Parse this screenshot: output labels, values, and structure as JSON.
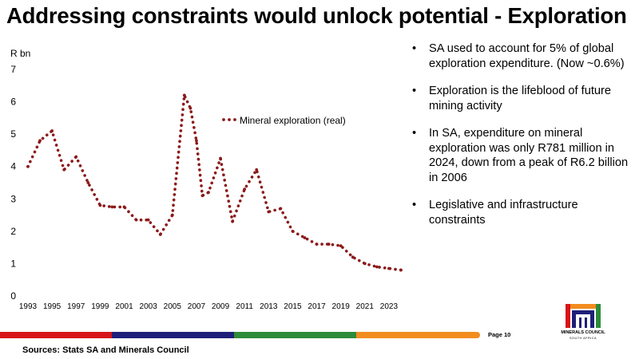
{
  "slide": {
    "title": "Addressing constraints would unlock potential - Exploration",
    "page_label": "Page 10",
    "sources": "Sources: Stats SA and Minerals Council"
  },
  "bullets": [
    "SA used to account for 5% of global exploration expenditure. (Now ~0.6%)",
    "Exploration is the lifeblood of future mining activity",
    "In SA, expenditure on mineral exploration was only R781 million in 2024, down from a peak of R6.2 billion in 2006",
    "Legislative and infrastructure constraints"
  ],
  "logo": {
    "name": "MINERALS COUNCIL",
    "subtitle": "SOUTH AFRICA"
  },
  "colors": {
    "series": "#8B1A1A",
    "stripe_red": "#D7141A",
    "stripe_navy": "#1F1F7A",
    "stripe_green": "#2E8B3A",
    "stripe_orange": "#F28C1E"
  },
  "chart_data": {
    "type": "line",
    "style": "dotted",
    "ylabel": "R bn",
    "ylim": [
      0,
      7
    ],
    "yticks": [
      0,
      1,
      2,
      3,
      4,
      5,
      6,
      7
    ],
    "xlim": [
      1993,
      2024
    ],
    "xticks": [
      1993,
      1995,
      1997,
      1999,
      2001,
      2003,
      2005,
      2007,
      2009,
      2011,
      2013,
      2015,
      2017,
      2019,
      2021,
      2023
    ],
    "grid": false,
    "legend_position": "top-center",
    "series": [
      {
        "name": "Mineral exploration (real)",
        "x": [
          1993,
          1994,
          1995,
          1996,
          1997,
          1998,
          1999,
          2000,
          2001,
          2002,
          2003,
          2004,
          2005,
          2006,
          2006.5,
          2007,
          2007.5,
          2008,
          2009,
          2010,
          2011,
          2012,
          2013,
          2014,
          2015,
          2016,
          2017,
          2018,
          2019,
          2020,
          2021,
          2022,
          2023,
          2024
        ],
        "y": [
          4.0,
          4.8,
          5.1,
          3.9,
          4.3,
          3.5,
          2.8,
          2.75,
          2.75,
          2.35,
          2.35,
          1.9,
          2.5,
          6.2,
          5.8,
          4.8,
          3.1,
          3.2,
          4.25,
          2.3,
          3.3,
          3.9,
          2.6,
          2.7,
          2.0,
          1.8,
          1.6,
          1.6,
          1.55,
          1.2,
          1.0,
          0.9,
          0.85,
          0.8
        ]
      }
    ]
  }
}
